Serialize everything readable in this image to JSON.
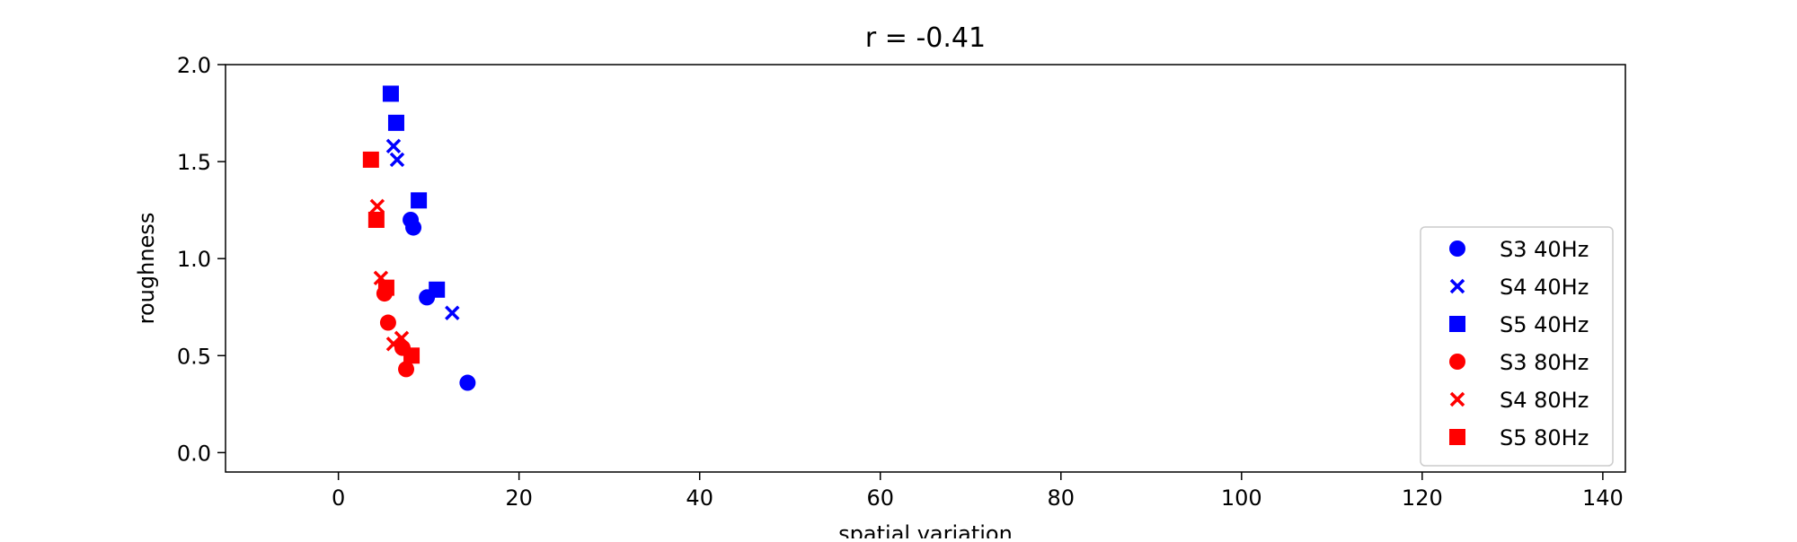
{
  "chart_data": {
    "type": "scatter",
    "title": "r = -0.41",
    "xlabel": "spatial variation",
    "ylabel": "roughness",
    "xlim": [
      -12.5,
      142.5
    ],
    "ylim": [
      -0.1,
      2.0
    ],
    "xticks": [
      0,
      20,
      40,
      60,
      80,
      100,
      120,
      140
    ],
    "yticks": [
      0.0,
      0.5,
      1.0,
      1.5,
      2.0
    ],
    "xtick_labels": [
      "0",
      "20",
      "40",
      "60",
      "80",
      "100",
      "120",
      "140"
    ],
    "ytick_labels": [
      "0.0",
      "0.5",
      "1.0",
      "1.5",
      "2.0"
    ],
    "grid": false,
    "legend_position": "lower-right",
    "series": [
      {
        "name": "S3 40Hz",
        "marker": "circle",
        "color": "#0000ff",
        "points": [
          [
            8.0,
            1.2
          ],
          [
            8.3,
            1.16
          ],
          [
            9.8,
            0.8
          ],
          [
            14.3,
            0.36
          ]
        ]
      },
      {
        "name": "S4 40Hz",
        "marker": "x",
        "color": "#0000ff",
        "points": [
          [
            6.1,
            1.58
          ],
          [
            6.5,
            1.51
          ],
          [
            12.6,
            0.72
          ]
        ]
      },
      {
        "name": "S5 40Hz",
        "marker": "square",
        "color": "#0000ff",
        "points": [
          [
            5.8,
            1.85
          ],
          [
            6.4,
            1.7
          ],
          [
            8.9,
            1.3
          ],
          [
            10.9,
            0.84
          ]
        ]
      },
      {
        "name": "S3 80Hz",
        "marker": "circle",
        "color": "#ff0000",
        "points": [
          [
            5.1,
            0.82
          ],
          [
            5.5,
            0.67
          ],
          [
            7.1,
            0.54
          ],
          [
            7.5,
            0.43
          ]
        ]
      },
      {
        "name": "S4 80Hz",
        "marker": "x",
        "color": "#ff0000",
        "points": [
          [
            4.3,
            1.27
          ],
          [
            4.7,
            0.9
          ],
          [
            6.1,
            0.56
          ],
          [
            7.0,
            0.59
          ]
        ]
      },
      {
        "name": "S5 80Hz",
        "marker": "square",
        "color": "#ff0000",
        "points": [
          [
            3.6,
            1.51
          ],
          [
            4.2,
            1.2
          ],
          [
            5.3,
            0.85
          ],
          [
            8.1,
            0.5
          ]
        ]
      }
    ]
  }
}
